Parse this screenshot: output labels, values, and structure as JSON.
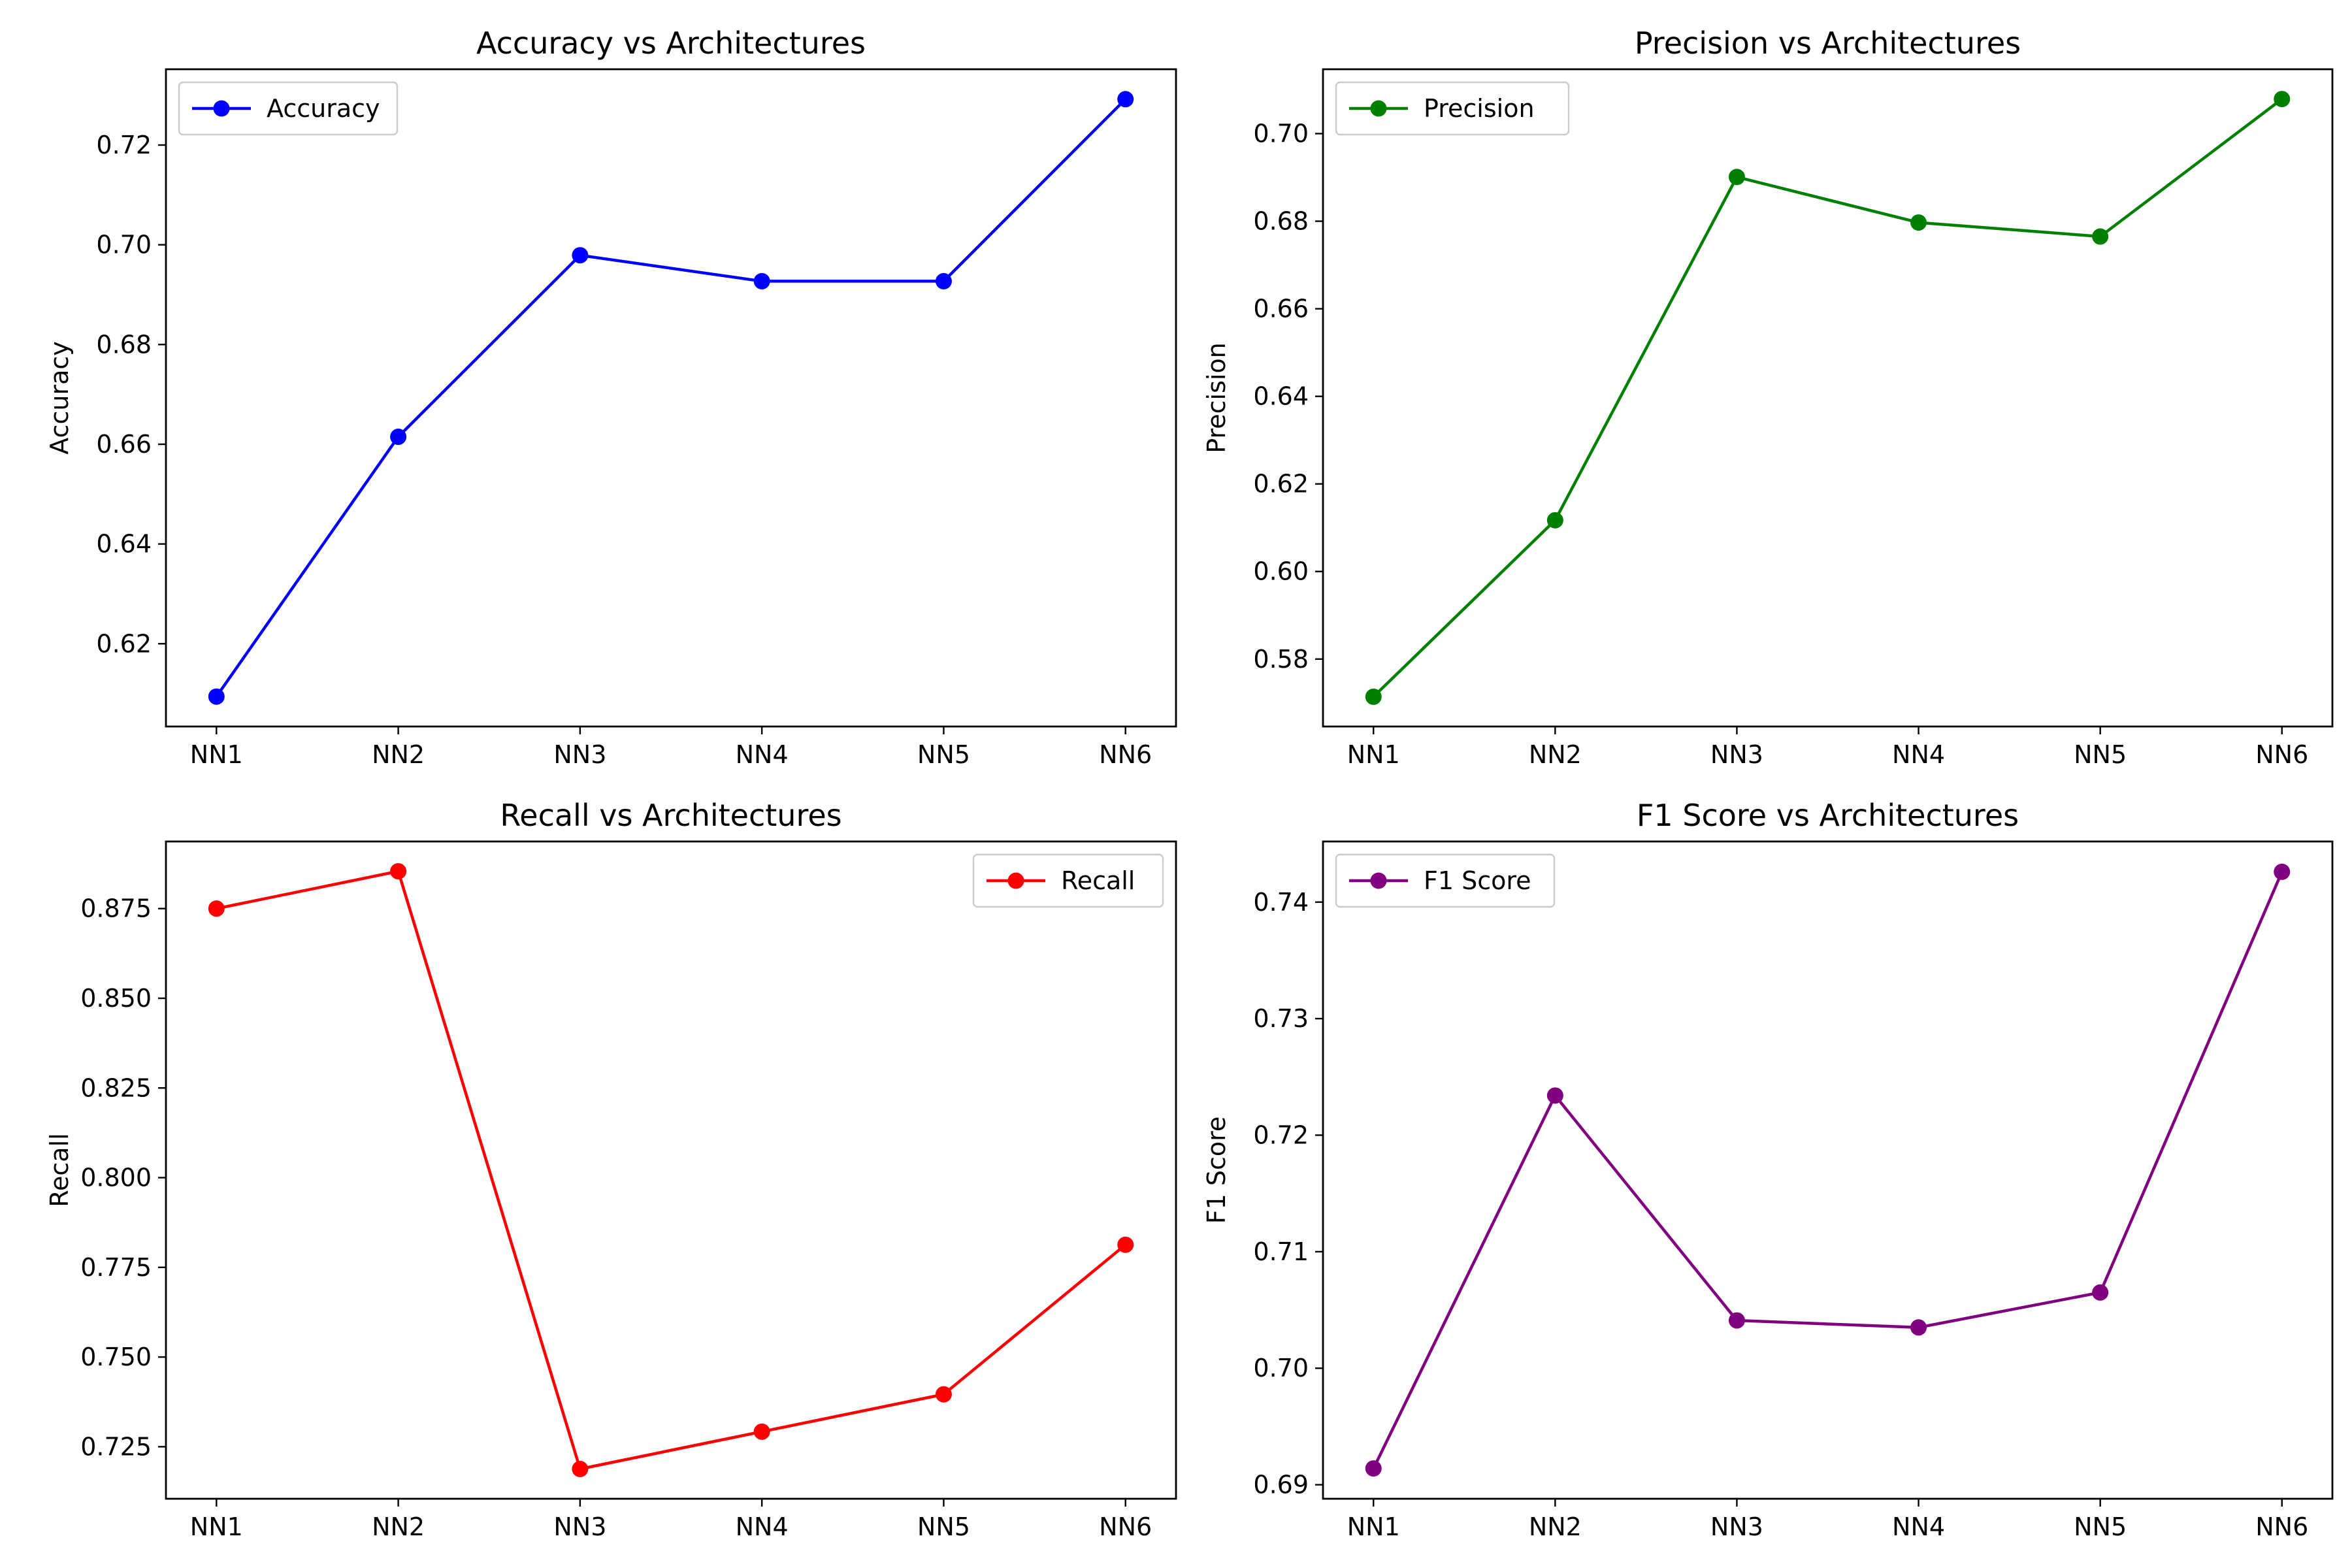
{
  "chart_data": [
    {
      "type": "line",
      "title": "Accuracy vs Architectures",
      "xlabel": "",
      "ylabel": "Accuracy",
      "categories": [
        "NN1",
        "NN2",
        "NN3",
        "NN4",
        "NN5",
        "NN6"
      ],
      "series": [
        {
          "name": "Accuracy",
          "color": "#0000ff",
          "values": [
            0.6094,
            0.6615,
            0.6979,
            0.6927,
            0.6927,
            0.7292
          ]
        }
      ],
      "ylim": [
        0.6034,
        0.7352
      ],
      "yticks": [
        0.62,
        0.64,
        0.66,
        0.68,
        0.7,
        0.72
      ],
      "ytick_labels": [
        "0.62",
        "0.64",
        "0.66",
        "0.68",
        "0.70",
        "0.72"
      ],
      "grid": false,
      "legend": "upper-left"
    },
    {
      "type": "line",
      "title": "Precision vs Architectures",
      "xlabel": "",
      "ylabel": "Precision",
      "categories": [
        "NN1",
        "NN2",
        "NN3",
        "NN4",
        "NN5",
        "NN6"
      ],
      "series": [
        {
          "name": "Precision",
          "color": "#008000",
          "values": [
            0.5714,
            0.6117,
            0.6901,
            0.6797,
            0.6765,
            0.7079
          ]
        }
      ],
      "ylim": [
        0.5646,
        0.7147
      ],
      "yticks": [
        0.58,
        0.6,
        0.62,
        0.64,
        0.66,
        0.68,
        0.7
      ],
      "ytick_labels": [
        "0.58",
        "0.60",
        "0.62",
        "0.64",
        "0.66",
        "0.68",
        "0.70"
      ],
      "grid": false,
      "legend": "upper-left"
    },
    {
      "type": "line",
      "title": "Recall vs Architectures",
      "xlabel": "",
      "ylabel": "Recall",
      "categories": [
        "NN1",
        "NN2",
        "NN3",
        "NN4",
        "NN5",
        "NN6"
      ],
      "series": [
        {
          "name": "Recall",
          "color": "#ff0000",
          "values": [
            0.875,
            0.8854,
            0.7188,
            0.7292,
            0.7396,
            0.7813
          ]
        }
      ],
      "ylim": [
        0.7105,
        0.8937
      ],
      "yticks": [
        0.725,
        0.75,
        0.775,
        0.8,
        0.825,
        0.85,
        0.875
      ],
      "ytick_labels": [
        "0.725",
        "0.750",
        "0.775",
        "0.800",
        "0.825",
        "0.850",
        "0.875"
      ],
      "grid": false,
      "legend": "upper-right"
    },
    {
      "type": "line",
      "title": "F1 Score vs Architectures",
      "xlabel": "",
      "ylabel": "F1 Score",
      "categories": [
        "NN1",
        "NN2",
        "NN3",
        "NN4",
        "NN5",
        "NN6"
      ],
      "series": [
        {
          "name": "F1 Score",
          "color": "#800080",
          "values": [
            0.6914,
            0.7234,
            0.7041,
            0.7035,
            0.7065,
            0.7426
          ]
        }
      ],
      "ylim": [
        0.6888,
        0.7452
      ],
      "yticks": [
        0.69,
        0.7,
        0.71,
        0.72,
        0.73,
        0.74
      ],
      "ytick_labels": [
        "0.69",
        "0.70",
        "0.71",
        "0.72",
        "0.73",
        "0.74"
      ],
      "grid": false,
      "legend": "upper-left"
    }
  ]
}
